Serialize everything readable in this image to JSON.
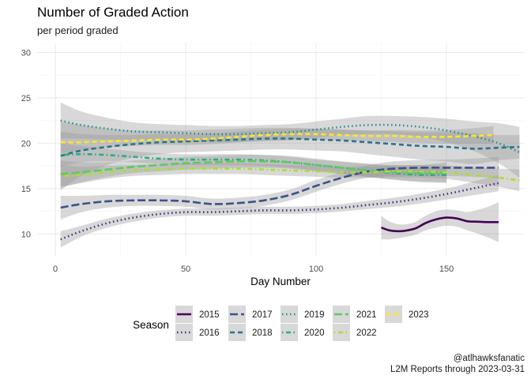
{
  "chart_data": {
    "type": "line",
    "title": "Number of Graded Action",
    "subtitle": "per period graded",
    "xlabel": "Day Number",
    "ylabel": "",
    "xlim": [
      -7,
      180
    ],
    "ylim": [
      7.5,
      31
    ],
    "xticks": [
      0,
      50,
      100,
      150
    ],
    "yticks": [
      10,
      15,
      20,
      25,
      30
    ],
    "grid": true,
    "band_color": "#999999",
    "legend": {
      "title": "Season",
      "position": "bottom"
    },
    "caption_lines": [
      "@atlhawksfanatic",
      "L2M Reports through 2023-03-31"
    ],
    "series": [
      {
        "name": "2015",
        "color": "#440154",
        "dash": "solid",
        "x": [
          125,
          128,
          131,
          134,
          138,
          142,
          146,
          150,
          154,
          158,
          162,
          166,
          170
        ],
        "y": [
          10.7,
          10.4,
          10.3,
          10.35,
          10.6,
          11.2,
          11.6,
          11.8,
          11.7,
          11.4,
          11.35,
          11.3,
          11.3
        ],
        "band_width": [
          1.3,
          1.0,
          0.8,
          0.7,
          0.7,
          0.8,
          0.9,
          0.9,
          0.9,
          1.0,
          1.3,
          1.7,
          2.2
        ]
      },
      {
        "name": "2016",
        "color": "#472d7b",
        "dash": "dotted",
        "x": [
          2,
          10,
          20,
          30,
          40,
          50,
          60,
          70,
          80,
          90,
          100,
          110,
          120,
          130,
          140,
          150,
          160,
          170
        ],
        "y": [
          9.4,
          10.3,
          11.2,
          11.8,
          12.2,
          12.4,
          12.4,
          12.5,
          12.6,
          12.6,
          12.7,
          12.9,
          13.2,
          13.5,
          13.9,
          14.4,
          15.0,
          15.6
        ],
        "band_width": [
          0.9,
          0.6,
          0.5,
          0.45,
          0.4,
          0.4,
          0.4,
          0.4,
          0.4,
          0.4,
          0.4,
          0.4,
          0.45,
          0.5,
          0.55,
          0.6,
          0.75,
          0.9
        ]
      },
      {
        "name": "2017",
        "color": "#3b528b",
        "dash": "longdash",
        "x": [
          2,
          10,
          20,
          30,
          40,
          50,
          60,
          70,
          80,
          90,
          100,
          110,
          120,
          130,
          140,
          150,
          160,
          170
        ],
        "y": [
          12.9,
          13.3,
          13.6,
          13.7,
          13.7,
          13.6,
          13.3,
          13.4,
          13.7,
          14.3,
          15.3,
          16.2,
          16.9,
          17.2,
          17.3,
          17.3,
          17.3,
          17.3
        ],
        "band_width": [
          1.3,
          0.9,
          0.7,
          0.6,
          0.6,
          0.6,
          0.6,
          0.6,
          0.6,
          0.6,
          0.65,
          0.65,
          0.7,
          0.8,
          0.85,
          0.9,
          1.0,
          1.2
        ]
      },
      {
        "name": "2018",
        "color": "#2c728e",
        "dash": "dashed",
        "x": [
          2,
          10,
          20,
          30,
          40,
          50,
          60,
          70,
          80,
          90,
          100,
          110,
          120,
          130,
          140,
          150,
          160,
          170,
          178
        ],
        "y": [
          18.6,
          19.2,
          19.6,
          19.9,
          20.1,
          20.2,
          20.3,
          20.4,
          20.5,
          20.5,
          20.4,
          20.3,
          20.1,
          19.9,
          19.7,
          19.6,
          19.4,
          19.5,
          19.6
        ],
        "band_width": [
          3.8,
          2.8,
          2.0,
          1.5,
          1.3,
          1.2,
          1.2,
          1.2,
          1.2,
          1.2,
          1.2,
          1.2,
          1.3,
          1.4,
          1.5,
          1.6,
          1.7,
          1.4,
          1.3
        ]
      },
      {
        "name": "2019",
        "color": "#21918c",
        "dash": "dotted",
        "x": [
          2,
          10,
          20,
          30,
          40,
          50,
          60,
          70,
          80,
          90,
          100,
          110,
          120,
          130,
          140,
          150,
          160,
          170,
          178
        ],
        "y": [
          22.5,
          22.0,
          21.6,
          21.3,
          21.2,
          21.1,
          21.0,
          21.0,
          21.1,
          21.2,
          21.5,
          21.8,
          22.0,
          22.0,
          21.8,
          21.4,
          20.8,
          20.0,
          19.0
        ],
        "band_width": [
          2.0,
          1.5,
          1.2,
          1.0,
          0.9,
          0.9,
          0.9,
          0.9,
          0.9,
          0.9,
          0.9,
          0.9,
          1.0,
          1.0,
          1.1,
          1.3,
          1.6,
          2.2,
          2.8
        ]
      },
      {
        "name": "2020",
        "color": "#28ae80",
        "dash": "dotdash",
        "x": [
          2,
          10,
          20,
          30,
          40,
          50,
          60,
          70,
          80,
          90,
          100,
          110,
          120,
          130,
          140,
          150
        ],
        "y": [
          18.7,
          18.8,
          18.7,
          18.5,
          18.3,
          18.2,
          18.2,
          18.2,
          18.1,
          17.9,
          17.6,
          17.3,
          17.0,
          16.7,
          16.5,
          16.5
        ],
        "band_width": [
          1.3,
          0.9,
          0.7,
          0.6,
          0.6,
          0.6,
          0.6,
          0.6,
          0.6,
          0.6,
          0.6,
          0.65,
          0.7,
          0.75,
          0.8,
          0.9
        ]
      },
      {
        "name": "2021",
        "color": "#5ec962",
        "dash": "longdash",
        "x": [
          2,
          10,
          20,
          30,
          40,
          50,
          60,
          70,
          80,
          90,
          100,
          110,
          120,
          130,
          140,
          150
        ],
        "y": [
          16.6,
          16.8,
          17.1,
          17.4,
          17.6,
          17.8,
          17.9,
          18.0,
          18.0,
          17.9,
          17.6,
          17.3,
          17.0,
          16.8,
          16.7,
          16.8
        ],
        "band_width": [
          1.5,
          1.1,
          0.8,
          0.7,
          0.7,
          0.7,
          0.7,
          0.7,
          0.7,
          0.7,
          0.7,
          0.7,
          0.75,
          0.8,
          0.9,
          1.1
        ]
      },
      {
        "name": "2022",
        "color": "#addc30",
        "dash": "dotdash",
        "x": [
          2,
          10,
          20,
          30,
          40,
          50,
          60,
          70,
          80,
          90,
          100,
          110,
          120,
          130,
          140,
          150,
          160,
          170,
          178
        ],
        "y": [
          16.4,
          16.5,
          16.8,
          17.0,
          17.1,
          17.2,
          17.2,
          17.2,
          17.1,
          17.0,
          16.9,
          16.8,
          16.8,
          16.9,
          16.9,
          16.8,
          16.5,
          16.2,
          15.9
        ],
        "band_width": [
          1.2,
          0.9,
          0.7,
          0.6,
          0.6,
          0.6,
          0.6,
          0.6,
          0.6,
          0.6,
          0.6,
          0.6,
          0.6,
          0.65,
          0.7,
          0.75,
          0.85,
          1.0,
          1.2
        ]
      },
      {
        "name": "2023",
        "color": "#fde725",
        "dash": "dashed",
        "x": [
          2,
          10,
          20,
          30,
          40,
          50,
          60,
          70,
          80,
          90,
          100,
          110,
          120,
          130,
          140,
          150,
          160,
          168
        ],
        "y": [
          20.1,
          20.1,
          20.2,
          20.3,
          20.4,
          20.4,
          20.5,
          20.7,
          20.9,
          21.0,
          21.0,
          20.9,
          20.8,
          20.8,
          20.7,
          20.7,
          20.8,
          20.9
        ],
        "band_width": [
          1.2,
          0.9,
          0.7,
          0.6,
          0.6,
          0.6,
          0.6,
          0.6,
          0.6,
          0.6,
          0.6,
          0.6,
          0.6,
          0.65,
          0.7,
          0.75,
          0.85,
          1.0
        ]
      }
    ]
  }
}
